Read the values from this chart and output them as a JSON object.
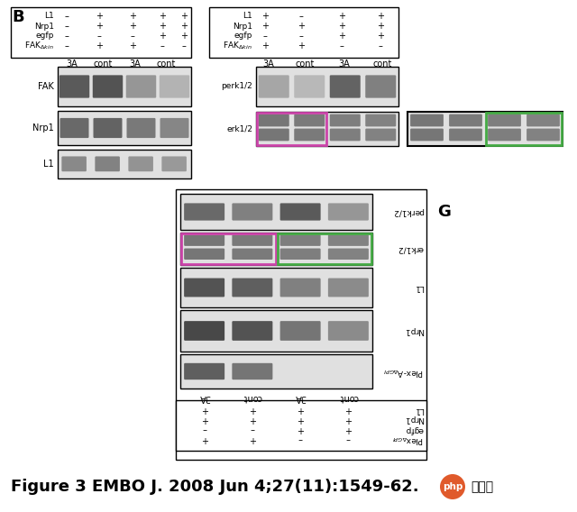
{
  "bg_color": "#ffffff",
  "figure_label": "B",
  "label_G": "G",
  "footer_text": "Figure 3 EMBO J. 2008 Jun 4;27(11):1549-62.",
  "footer_fontsize": 13,
  "php_circle_color": "#e05a2b",
  "php_text": "php",
  "chinese_text": "中文网",
  "col_label_names": [
    "3A",
    "cont",
    "3A",
    "cont"
  ]
}
